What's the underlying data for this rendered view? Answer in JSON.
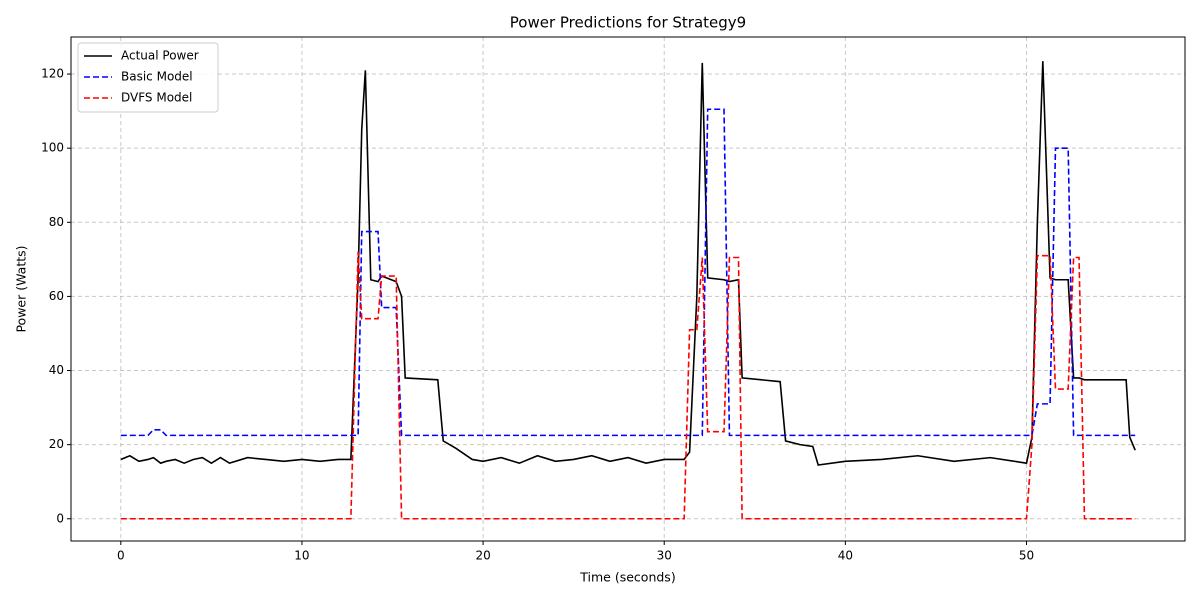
{
  "chart_data": {
    "type": "line",
    "title": "Power Predictions for Strategy9",
    "x_label": "Time (seconds)",
    "y_label": "Power (Watts)",
    "x": [
      0,
      0.5,
      1,
      1.5,
      1.8,
      2.2,
      2.5,
      3,
      3.5,
      4,
      4.5,
      5,
      5.5,
      6,
      7,
      8,
      9,
      10,
      11,
      12,
      12.7,
      13.1,
      13.3,
      13.5,
      13.8,
      14.2,
      14.4,
      15.2,
      15.5,
      15.7,
      17.5,
      17.8,
      18.5,
      19.4,
      20,
      21,
      22,
      23,
      24,
      25,
      26,
      27,
      28,
      29,
      30,
      31.1,
      31.4,
      31.8,
      32.1,
      32.4,
      33.3,
      33.6,
      34.1,
      34.3,
      36.4,
      36.7,
      37.5,
      38.2,
      38.5,
      40,
      42,
      44,
      46,
      48,
      50,
      50.3,
      50.6,
      50.9,
      51.3,
      51.6,
      52.3,
      52.6,
      52.9,
      53.2,
      55.5,
      55.7,
      56
    ],
    "series": [
      {
        "name": "Actual Power",
        "color": "#000000",
        "dash": "solid",
        "values": [
          16,
          17,
          15.5,
          16,
          16.5,
          15,
          15.5,
          16,
          15,
          16,
          16.5,
          15,
          16.5,
          15,
          16.5,
          16,
          15.5,
          16,
          15.5,
          16,
          16,
          65,
          105,
          121,
          64.5,
          64,
          65.5,
          64,
          60,
          38,
          37.5,
          21,
          19,
          16,
          15.5,
          16.5,
          15,
          17,
          15.5,
          16,
          17,
          15.5,
          16.5,
          15,
          16,
          16,
          18,
          60,
          123,
          65,
          64.5,
          64,
          64.5,
          38,
          37,
          21,
          20,
          19.5,
          14.5,
          15.5,
          16,
          17,
          15.5,
          16.5,
          15,
          22,
          80,
          123.5,
          65,
          64.5,
          64.5,
          38,
          38,
          37.5,
          37.5,
          22,
          18.5
        ]
      },
      {
        "name": "Basic Model",
        "color": "#0000ff",
        "dash": "dashed",
        "values": [
          22.5,
          22.5,
          22.5,
          22.5,
          24,
          24,
          22.5,
          22.5,
          22.5,
          22.5,
          22.5,
          22.5,
          22.5,
          22.5,
          22.5,
          22.5,
          22.5,
          22.5,
          22.5,
          22.5,
          22.5,
          22.5,
          77.5,
          77.5,
          77.5,
          77.5,
          57,
          57,
          22.5,
          22.5,
          22.5,
          22.5,
          22.5,
          22.5,
          22.5,
          22.5,
          22.5,
          22.5,
          22.5,
          22.5,
          22.5,
          22.5,
          22.5,
          22.5,
          22.5,
          22.5,
          22.5,
          22.5,
          22.5,
          110.5,
          110.5,
          22.5,
          22.5,
          22.5,
          22.5,
          22.5,
          22.5,
          22.5,
          22.5,
          22.5,
          22.5,
          22.5,
          22.5,
          22.5,
          22.5,
          22.5,
          31,
          31,
          31,
          100,
          100,
          22.5,
          22.5,
          22.5,
          22.5,
          22.5,
          22.5
        ]
      },
      {
        "name": "DVFS Model",
        "color": "#ff0000",
        "dash": "dashed",
        "values": [
          0,
          0,
          0,
          0,
          0,
          0,
          0,
          0,
          0,
          0,
          0,
          0,
          0,
          0,
          0,
          0,
          0,
          0,
          0,
          0,
          0,
          72,
          54,
          54,
          54,
          54,
          65.5,
          65.5,
          0,
          0,
          0,
          0,
          0,
          0,
          0,
          0,
          0,
          0,
          0,
          0,
          0,
          0,
          0,
          0,
          0,
          0,
          51,
          51,
          70.5,
          23.5,
          23.5,
          70.5,
          70.5,
          0,
          0,
          0,
          0,
          0,
          0,
          0,
          0,
          0,
          0,
          0,
          0,
          20,
          71,
          71,
          71,
          35,
          35,
          70.5,
          70.5,
          0,
          0,
          0,
          0
        ]
      }
    ],
    "xlim": [
      -2.75,
      58.75
    ],
    "ylim": [
      -6,
      130
    ],
    "xticks": [
      0,
      10,
      20,
      30,
      40,
      50
    ],
    "yticks": [
      0,
      20,
      40,
      60,
      80,
      100,
      120
    ],
    "grid": true,
    "legend": "upper-left"
  }
}
